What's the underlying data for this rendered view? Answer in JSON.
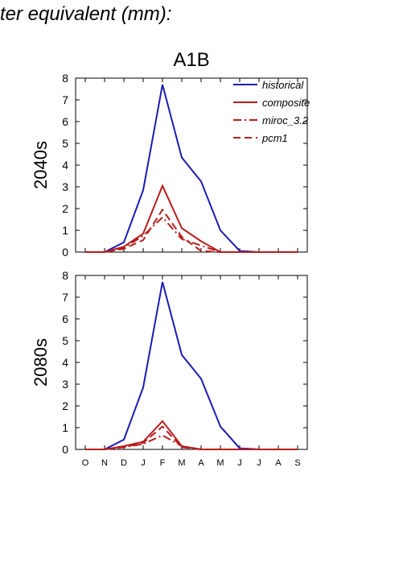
{
  "header": {
    "title": "ter equivalent (mm):"
  },
  "colors": {
    "historical": "#1c1cb4",
    "projection": "#b81c1c",
    "axis": "#000000"
  },
  "chart_data": [
    {
      "type": "line",
      "title": "A1B",
      "ylabel": "2040s",
      "xlabel": "",
      "categories": [
        "O",
        "N",
        "D",
        "J",
        "F",
        "M",
        "A",
        "M",
        "J",
        "J",
        "A",
        "S"
      ],
      "ylim": [
        0,
        8
      ],
      "yticks": [
        0,
        1,
        2,
        3,
        4,
        5,
        6,
        7,
        8
      ],
      "grid": false,
      "legend_position": "top-right",
      "series": [
        {
          "name": "historical",
          "color": "#1c1cb4",
          "dash": "solid",
          "values": [
            0,
            0,
            0.45,
            2.85,
            7.7,
            4.35,
            3.25,
            1.0,
            0.05,
            0,
            0,
            0
          ]
        },
        {
          "name": "composite",
          "color": "#b81c1c",
          "dash": "solid",
          "values": [
            0,
            0,
            0.25,
            0.85,
            3.05,
            1.1,
            0.5,
            0,
            0,
            0,
            0,
            0
          ]
        },
        {
          "name": "miroc_3.2",
          "color": "#b81c1c",
          "dash": "dashdot",
          "values": [
            0,
            0,
            0.2,
            0.75,
            1.6,
            0.6,
            0.3,
            0,
            0,
            0,
            0,
            0
          ]
        },
        {
          "name": "pcm1",
          "color": "#b81c1c",
          "dash": "dashed",
          "values": [
            0,
            0,
            0.15,
            0.55,
            1.95,
            0.7,
            0.05,
            0,
            0,
            0,
            0,
            0
          ]
        }
      ]
    },
    {
      "type": "line",
      "title": "",
      "ylabel": "2080s",
      "xlabel": "",
      "categories": [
        "O",
        "N",
        "D",
        "J",
        "F",
        "M",
        "A",
        "M",
        "J",
        "J",
        "A",
        "S"
      ],
      "ylim": [
        0,
        8
      ],
      "yticks": [
        0,
        1,
        2,
        3,
        4,
        5,
        6,
        7,
        8
      ],
      "grid": false,
      "series": [
        {
          "name": "historical",
          "color": "#1c1cb4",
          "dash": "solid",
          "values": [
            0,
            0,
            0.45,
            2.85,
            7.7,
            4.35,
            3.25,
            1.05,
            0.05,
            0,
            0,
            0
          ]
        },
        {
          "name": "composite",
          "color": "#b81c1c",
          "dash": "solid",
          "values": [
            0,
            0,
            0.15,
            0.35,
            1.3,
            0.15,
            0,
            0,
            0,
            0,
            0,
            0
          ]
        },
        {
          "name": "miroc_3.2",
          "color": "#b81c1c",
          "dash": "dashdot",
          "values": [
            0,
            0,
            0.1,
            0.25,
            0.65,
            0.15,
            0,
            0,
            0,
            0,
            0,
            0
          ]
        },
        {
          "name": "pcm1",
          "color": "#b81c1c",
          "dash": "dashed",
          "values": [
            0,
            0,
            0.1,
            0.3,
            1.05,
            0.1,
            0,
            0,
            0,
            0,
            0,
            0
          ]
        }
      ]
    }
  ]
}
